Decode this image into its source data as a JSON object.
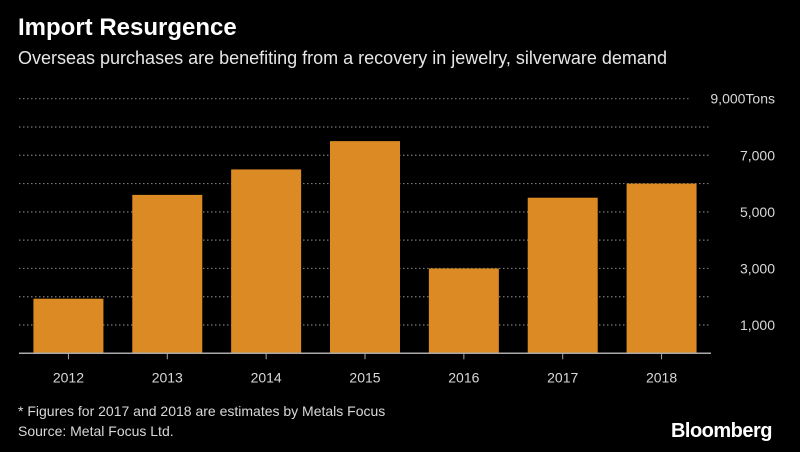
{
  "title": "Import Resurgence",
  "subtitle": "Overseas purchases are benefiting from a recovery in jewelry, silverware demand",
  "footnote": "* Figures for 2017 and 2018 are estimates by Metals Focus",
  "source": "Source: Metal Focus Ltd.",
  "logo": "Bloomberg",
  "chart_data": {
    "type": "bar",
    "categories": [
      "2012",
      "2013",
      "2014",
      "2015",
      "2016",
      "2017",
      "2018"
    ],
    "values": [
      1930,
      5600,
      6500,
      7500,
      3000,
      5500,
      6000
    ],
    "ylim": [
      0,
      9000
    ],
    "yticks": [
      1000,
      3000,
      5000,
      7000,
      9000
    ],
    "ytick_labels": [
      "1,000",
      "3,000",
      "5,000",
      "7,000",
      "9,000Tons"
    ],
    "yunit": "Tons",
    "grid": true,
    "bar_color": "#dc8a24"
  }
}
